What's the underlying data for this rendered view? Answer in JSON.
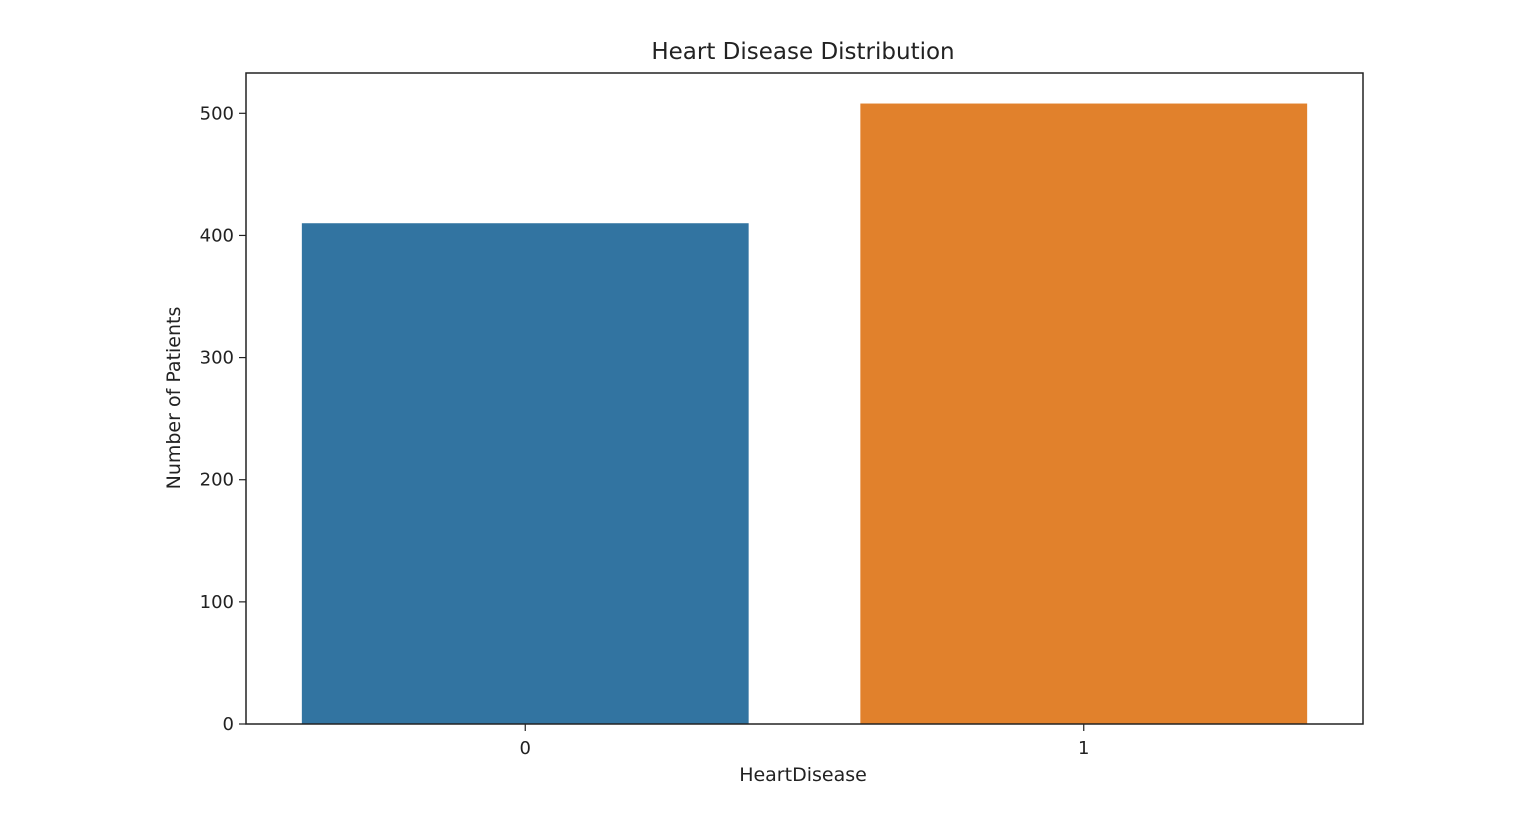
{
  "chart_data": {
    "type": "bar",
    "title": "Heart Disease Distribution",
    "xlabel": "HeartDisease",
    "ylabel": "Number of Patients",
    "categories": [
      "0",
      "1"
    ],
    "values": [
      410,
      508
    ],
    "colors": [
      "#3274a1",
      "#e1812c"
    ],
    "ylim": [
      0,
      533
    ],
    "yticks": [
      0,
      100,
      200,
      300,
      400,
      500
    ],
    "grid": false,
    "legend": "none"
  }
}
